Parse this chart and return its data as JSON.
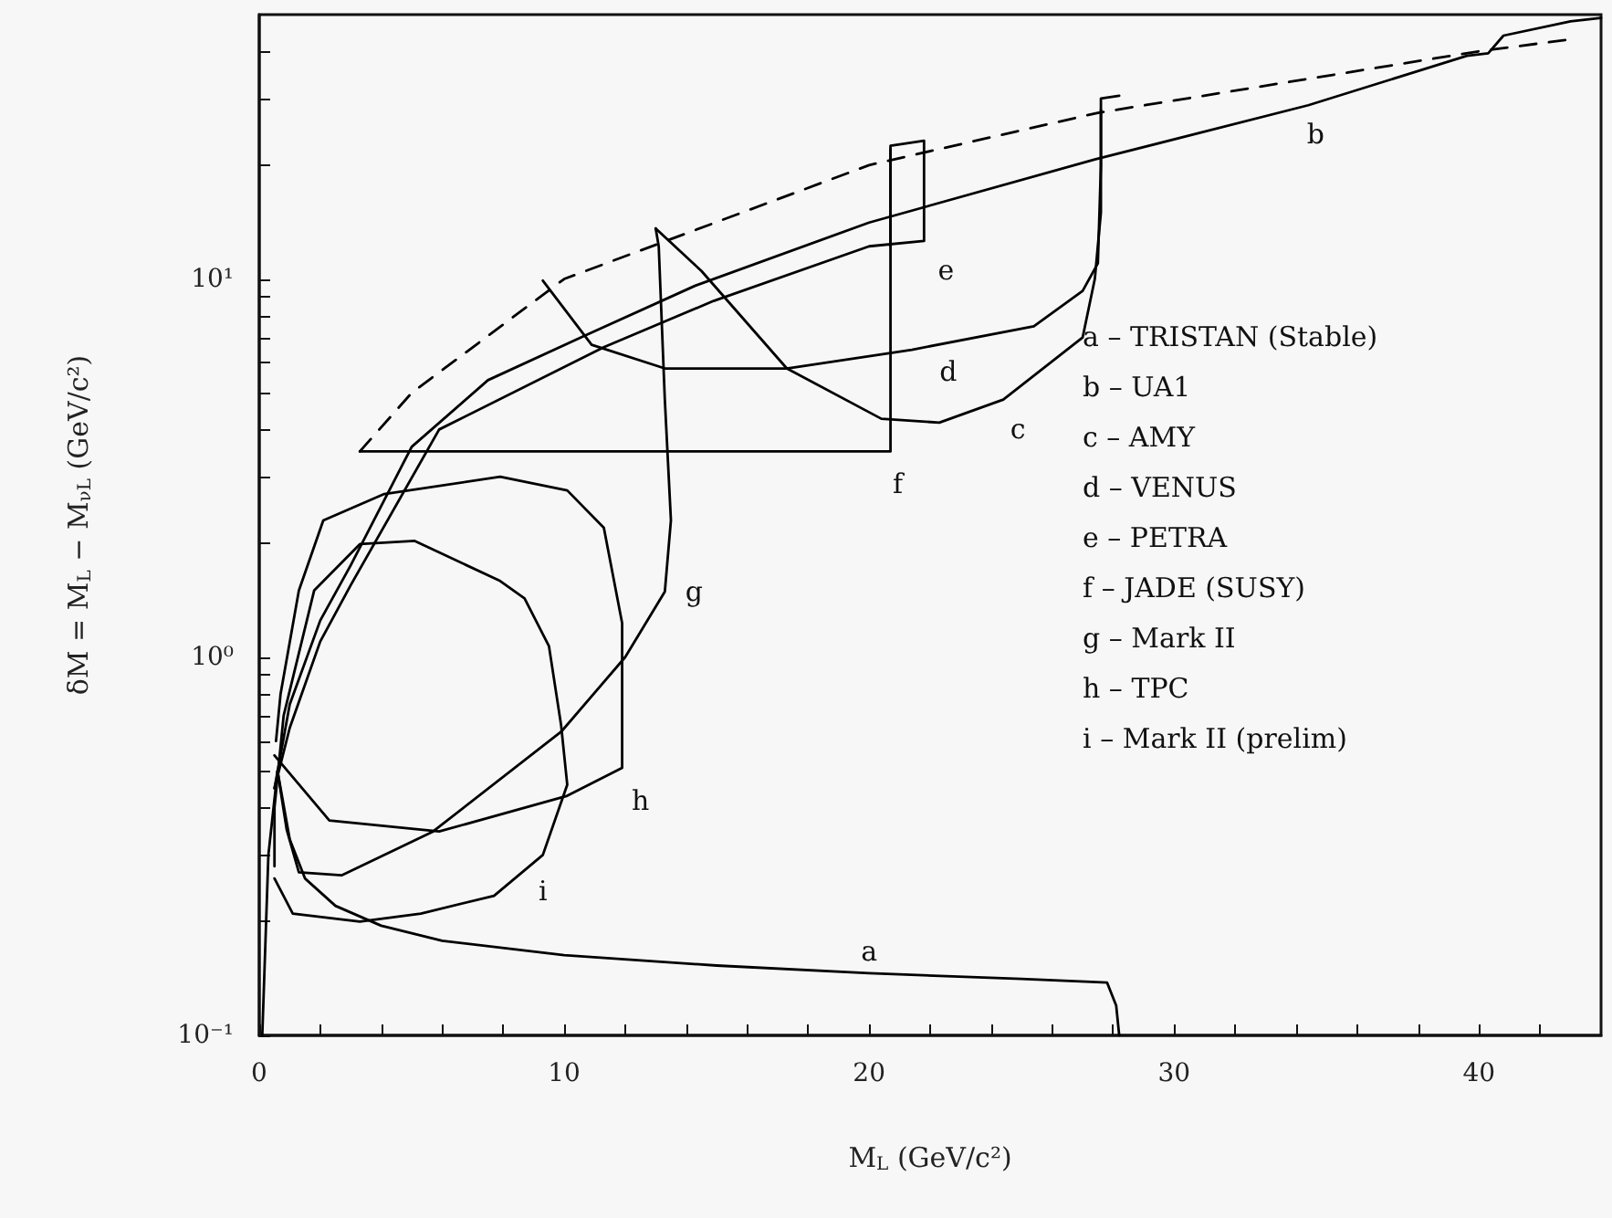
{
  "chart_data": {
    "type": "line",
    "xlabel": "M$_{L}$ (GeV/c²)",
    "ylabel": "δM = M$_{L}$ − M$_{νL}$ (GeV/c²)",
    "log": "y",
    "xlim": [
      0,
      44
    ],
    "ylim": [
      0.1,
      50
    ],
    "xticks": [
      0,
      {
        "value": 2,
        "label": null
      },
      {
        "value": 4,
        "label": null
      },
      {
        "value": 6,
        "label": null
      },
      {
        "value": 8,
        "label": null
      },
      10,
      {
        "value": 12,
        "label": null
      },
      {
        "value": 14,
        "label": null
      },
      {
        "value": 16,
        "label": null
      },
      {
        "value": 18,
        "label": null
      },
      20,
      {
        "value": 22,
        "label": null
      },
      {
        "value": 24,
        "label": null
      },
      {
        "value": 26,
        "label": null
      },
      {
        "value": 28,
        "label": null
      },
      30,
      {
        "value": 32,
        "label": null
      },
      {
        "value": 34,
        "label": null
      },
      {
        "value": 36,
        "label": null
      },
      {
        "value": 38,
        "label": null
      },
      40,
      {
        "value": 42,
        "label": null
      }
    ],
    "yticks": [
      {
        "value": 0.1,
        "label": "10⁻¹"
      },
      {
        "value": 0.2,
        "label": null
      },
      {
        "value": 0.3,
        "label": null
      },
      {
        "value": 0.4,
        "label": null
      },
      {
        "value": 0.5,
        "label": null
      },
      {
        "value": 0.6,
        "label": null
      },
      {
        "value": 0.7,
        "label": null
      },
      {
        "value": 0.8,
        "label": null
      },
      {
        "value": 0.9,
        "label": null
      },
      {
        "value": 1,
        "label": "10⁰"
      },
      {
        "value": 2,
        "label": null
      },
      {
        "value": 3,
        "label": null
      },
      {
        "value": 4,
        "label": null
      },
      {
        "value": 5,
        "label": null
      },
      {
        "value": 6,
        "label": null
      },
      {
        "value": 7,
        "label": null
      },
      {
        "value": 8,
        "label": null
      },
      {
        "value": 9,
        "label": null
      },
      {
        "value": 10,
        "label": "10¹"
      },
      {
        "value": 20,
        "label": null
      },
      {
        "value": 30,
        "label": null
      },
      {
        "value": 40,
        "label": null
      }
    ],
    "grid": false,
    "marker": "none",
    "series": [
      {
        "name": "a",
        "color": "#000000",
        "x": [
          0.1,
          0.3,
          0.6,
          1.0,
          1.5,
          2.5,
          4,
          6,
          10,
          15,
          20,
          25,
          27.8,
          28.1,
          28.2
        ],
        "values": [
          0.1,
          0.3,
          0.5,
          0.33,
          0.26,
          0.22,
          0.195,
          0.178,
          0.163,
          0.153,
          0.146,
          0.141,
          0.138,
          0.12,
          0.1
        ]
      },
      {
        "name": "b",
        "color": "#000000",
        "x": [
          0.5,
          1,
          2,
          3,
          5,
          7.5,
          10.7,
          14.3,
          20,
          27.4,
          34.4,
          39.6,
          40.3,
          40.8,
          43,
          44
        ],
        "values": [
          0.45,
          0.75,
          1.25,
          1.75,
          3.6,
          5.4,
          7.1,
          9.6,
          14.1,
          20.7,
          28.8,
          38.9,
          39.5,
          44,
          48,
          49
        ]
      },
      {
        "name": "c",
        "color": "#000000",
        "x": [
          13,
          14.5,
          17.3,
          20.4,
          22.3,
          24.4,
          27,
          27.4,
          27.6,
          27.6,
          28.2
        ],
        "values": [
          13.6,
          10.5,
          5.8,
          4.27,
          4.17,
          4.8,
          7.0,
          10,
          15,
          30,
          30.5
        ]
      },
      {
        "name": "d",
        "color": "#000000",
        "x": [
          9.3,
          10.9,
          13.3,
          17.3,
          21.4,
          25.4,
          27,
          27.5,
          27.6,
          27.6
        ],
        "values": [
          9.9,
          6.7,
          5.8,
          5.8,
          6.5,
          7.5,
          9.3,
          11,
          20,
          28
        ]
      },
      {
        "name": "e",
        "color": "#000000",
        "x": [
          0.5,
          1,
          2,
          3,
          5.9,
          11.3,
          14.9,
          20,
          21.8,
          21.8,
          20.7,
          20.7
        ],
        "values": [
          0.45,
          0.65,
          1.1,
          1.55,
          4.0,
          6.6,
          8.75,
          12.2,
          12.6,
          23.2,
          22.5,
          12.2
        ]
      },
      {
        "name": "f",
        "color": "#000000",
        "x": [
          3.3,
          20.7,
          20.7
        ],
        "values": [
          3.5,
          3.5,
          22
        ]
      },
      {
        "name": "g",
        "color": "#000000",
        "x": [
          0.6,
          0.9,
          1.3,
          2.7,
          5.7,
          9.9,
          12,
          13.3,
          13.5,
          13.3,
          13.1,
          13
        ],
        "values": [
          0.5,
          0.35,
          0.27,
          0.265,
          0.346,
          0.635,
          1.0,
          1.49,
          2.3,
          4.8,
          12.2,
          13.6
        ]
      },
      {
        "name": "h",
        "color": "#000000",
        "x": [
          0.5,
          2.3,
          5.9,
          10.1,
          11.9,
          11.9,
          11.3,
          10.1,
          7.9,
          4.1,
          2.1,
          1.3,
          0.7,
          0.55
        ],
        "values": [
          0.55,
          0.37,
          0.346,
          0.43,
          0.51,
          1.23,
          2.2,
          2.76,
          3.0,
          2.7,
          2.3,
          1.5,
          0.8,
          0.6
        ]
      },
      {
        "name": "i",
        "color": "#000000",
        "x": [
          0.5,
          1.1,
          3.3,
          5.3,
          7.7,
          9.3,
          10.1,
          9.9,
          9.5,
          8.7,
          7.9,
          5.1,
          3.3,
          1.8,
          0.8,
          0.5,
          0.5
        ],
        "values": [
          0.26,
          0.21,
          0.2,
          0.21,
          0.234,
          0.3,
          0.46,
          0.66,
          1.07,
          1.43,
          1.59,
          2.03,
          1.99,
          1.5,
          0.7,
          0.4,
          0.28
        ]
      },
      {
        "color": "#000000",
        "line_style": "dashed",
        "x": [
          3.3,
          5,
          10,
          20,
          27.5,
          40,
          43
        ],
        "values": [
          3.5,
          5,
          10,
          20,
          27.5,
          40,
          43
        ]
      }
    ],
    "annotations": [
      "a – TRISTAN (Stable)",
      "b – UA1",
      "c – AMY",
      "d – VENUS",
      "e – PETRA",
      "f – JADE (SUSY)",
      "g – Mark II",
      "h – TPC",
      "i – Mark II (prelim)"
    ]
  }
}
